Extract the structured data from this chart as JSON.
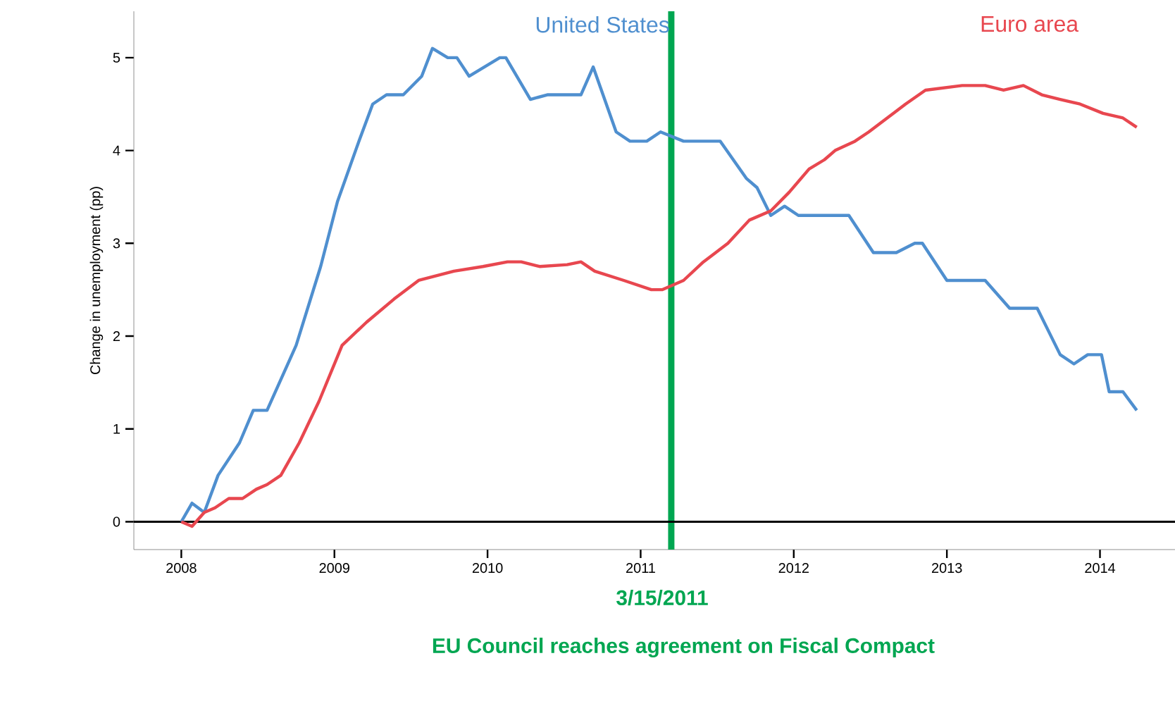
{
  "chart_data": {
    "type": "line",
    "ylabel": "Change in unemployment (pp)",
    "annotations": [
      "3/15/2011",
      "EU Council reaches agreement on Fiscal Compact"
    ],
    "xlim": [
      2007.69,
      2014.49
    ],
    "ylim": [
      -0.3,
      5.5
    ],
    "xticks": [
      2008,
      2009,
      2010,
      2011,
      2012,
      2013,
      2014
    ],
    "yticks": [
      0,
      1,
      2,
      3,
      4,
      5
    ],
    "grid": false,
    "legend": false,
    "marker": "none",
    "line_style": "solid",
    "ref_lines": [
      {
        "axis": "x",
        "value": 2011.2,
        "color": "#00a651"
      },
      {
        "axis": "y",
        "value": 0,
        "color": "#000000"
      }
    ],
    "series": [
      {
        "name": "United States",
        "color": "#4f8fcf",
        "x": [
          2008.0,
          2008.07,
          2008.15,
          2008.24,
          2008.38,
          2008.47,
          2008.56,
          2008.75,
          2008.91,
          2009.02,
          2009.16,
          2009.25,
          2009.34,
          2009.45,
          2009.57,
          2009.64,
          2009.74,
          2009.8,
          2009.88,
          2010.08,
          2010.12,
          2010.28,
          2010.39,
          2010.61,
          2010.69,
          2010.84,
          2010.93,
          2011.04,
          2011.13,
          2011.28,
          2011.37,
          2011.52,
          2011.69,
          2011.76,
          2011.85,
          2011.94,
          2012.03,
          2012.36,
          2012.52,
          2012.67,
          2012.79,
          2012.84,
          2013.0,
          2013.25,
          2013.41,
          2013.59,
          2013.74,
          2013.83,
          2013.92,
          2014.01,
          2014.06,
          2014.15,
          2014.24
        ],
        "values": [
          0,
          0.2,
          0.1,
          0.5,
          0.85,
          1.2,
          1.2,
          1.9,
          2.75,
          3.45,
          4.1,
          4.5,
          4.6,
          4.6,
          4.8,
          5.1,
          5.0,
          5.0,
          4.8,
          5.0,
          5.0,
          4.55,
          4.6,
          4.6,
          4.9,
          4.2,
          4.1,
          4.1,
          4.2,
          4.1,
          4.1,
          4.1,
          3.7,
          3.6,
          3.3,
          3.4,
          3.3,
          3.3,
          2.9,
          2.9,
          3.0,
          3.0,
          2.6,
          2.6,
          2.3,
          2.3,
          1.8,
          1.7,
          1.8,
          1.8,
          1.4,
          1.4,
          1.2
        ]
      },
      {
        "name": "Euro area",
        "color": "#e8474f",
        "x": [
          2008.0,
          2008.07,
          2008.15,
          2008.22,
          2008.31,
          2008.4,
          2008.49,
          2008.56,
          2008.65,
          2008.77,
          2008.9,
          2009.05,
          2009.21,
          2009.39,
          2009.55,
          2009.78,
          2009.97,
          2010.13,
          2010.22,
          2010.34,
          2010.52,
          2010.61,
          2010.7,
          2010.89,
          2011.07,
          2011.14,
          2011.28,
          2011.41,
          2011.57,
          2011.71,
          2011.85,
          2011.97,
          2012.1,
          2012.2,
          2012.27,
          2012.4,
          2012.49,
          2012.61,
          2012.73,
          2012.86,
          2013.1,
          2013.25,
          2013.37,
          2013.5,
          2013.62,
          2013.74,
          2013.87,
          2014.02,
          2014.15,
          2014.24
        ],
        "values": [
          0,
          -0.05,
          0.1,
          0.15,
          0.25,
          0.25,
          0.35,
          0.4,
          0.5,
          0.85,
          1.3,
          1.9,
          2.15,
          2.4,
          2.6,
          2.7,
          2.75,
          2.8,
          2.8,
          2.75,
          2.77,
          2.8,
          2.7,
          2.6,
          2.5,
          2.5,
          2.6,
          2.8,
          3.0,
          3.25,
          3.35,
          3.55,
          3.8,
          3.9,
          4.0,
          4.1,
          4.2,
          4.35,
          4.5,
          4.65,
          4.7,
          4.7,
          4.65,
          4.7,
          4.6,
          4.55,
          4.5,
          4.4,
          4.35,
          4.25
        ]
      }
    ]
  }
}
